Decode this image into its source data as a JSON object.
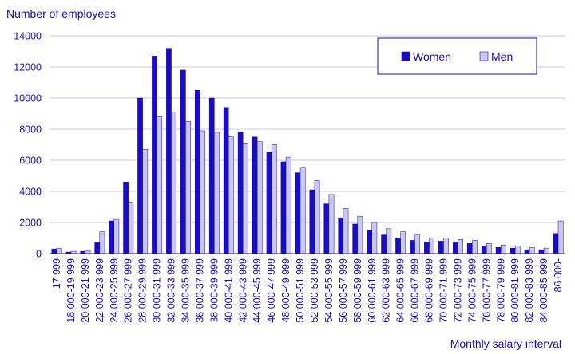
{
  "chart_data": {
    "type": "bar",
    "ylabel": "Number of employees",
    "xlabel": "Monthly salary interval",
    "ylim": [
      0,
      14000
    ],
    "yticks": [
      0,
      2000,
      4000,
      6000,
      8000,
      10000,
      12000,
      14000
    ],
    "grid": true,
    "legend_position": "top-right",
    "categories": [
      "-17 999",
      "18 000-19 999",
      "20 000-21 999",
      "22 000-23 999",
      "24 000-25 999",
      "26 000-27 999",
      "28 000-29 999",
      "30 000-31 999",
      "32 000-33 999",
      "34 000-35 999",
      "36 000-37 999",
      "38 000-39 999",
      "40 000-41 999",
      "42 000-43 999",
      "44 000-45 999",
      "46 000-47 999",
      "48 000-49 999",
      "50 000-51 999",
      "52 000-53 999",
      "54 000-55 999",
      "56 000-57 999",
      "58 000-59 999",
      "60 000-61 999",
      "62 000-63 999",
      "64 000-65 999",
      "66 000-67 999",
      "68 000-69 999",
      "70 000-71 999",
      "72 000-73 999",
      "74 000-75 999",
      "76 000-77 999",
      "78 000-79 999",
      "80 000-81 999",
      "82 000-83 999",
      "84 000-85 999",
      "86 000-"
    ],
    "series": [
      {
        "name": "Women",
        "color": "#1a0dbf",
        "values": [
          300,
          100,
          150,
          700,
          2100,
          4600,
          10000,
          12700,
          13200,
          11800,
          10500,
          10000,
          9400,
          7800,
          7500,
          6500,
          5900,
          5200,
          4100,
          3200,
          2300,
          1900,
          1500,
          1200,
          1000,
          850,
          750,
          800,
          700,
          650,
          500,
          400,
          350,
          250,
          250,
          1300
        ]
      },
      {
        "name": "Men",
        "color": "#c8c8f0",
        "values": [
          350,
          150,
          200,
          1400,
          2200,
          3300,
          6700,
          8800,
          9100,
          8500,
          7900,
          7800,
          7500,
          7100,
          7200,
          7000,
          6200,
          5500,
          4700,
          3800,
          2900,
          2400,
          2000,
          1600,
          1400,
          1200,
          1000,
          1000,
          900,
          850,
          650,
          550,
          500,
          400,
          350,
          2100
        ]
      }
    ]
  }
}
